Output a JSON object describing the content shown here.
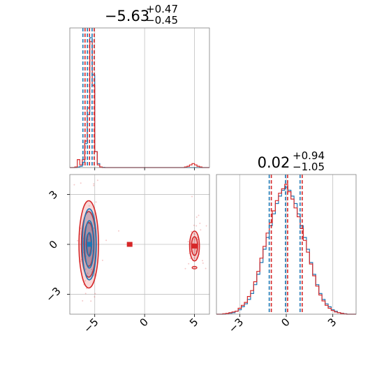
{
  "colors": {
    "series_a": "#1f77b4",
    "series_b": "#d62728"
  },
  "chart_data": [
    {
      "type": "histogram",
      "panel": "marginal-param-1",
      "title": {
        "main": "−5.63",
        "sup": "+0.47",
        "sub": "−0.45"
      },
      "xlim": [
        -7.5,
        6.5
      ],
      "xticks": [
        -5,
        0,
        5
      ],
      "quantile_lines": [
        -6.08,
        -5.63,
        -5.16
      ],
      "series": [
        {
          "color_key": "series_a",
          "bins_start": -7.5,
          "bin_width": 0.25,
          "counts": [
            0,
            0,
            0,
            0.4,
            1,
            4,
            18,
            40,
            98,
            70,
            12,
            3,
            0.5,
            0.2,
            0,
            0,
            0,
            0,
            0,
            0,
            0,
            0,
            0,
            0,
            0,
            0,
            0,
            0,
            0,
            0,
            0,
            0,
            0,
            0,
            0,
            0,
            0,
            0,
            0,
            0,
            0,
            0,
            0,
            0,
            0,
            0,
            0,
            0,
            0,
            0,
            0,
            0,
            0,
            0,
            0,
            0
          ]
        },
        {
          "color_key": "series_b",
          "bins_start": -7.5,
          "bin_width": 0.25,
          "counts": [
            0,
            0,
            0.5,
            6,
            2,
            6,
            20,
            45,
            95,
            62,
            12,
            2,
            0.5,
            0,
            0,
            0,
            0,
            0,
            0,
            0,
            0,
            0,
            0,
            0,
            0,
            0,
            0,
            0,
            0,
            0,
            0,
            0,
            0,
            0,
            0,
            0,
            0,
            0,
            0,
            0,
            0,
            0,
            0,
            0,
            0,
            0,
            0.5,
            1,
            2,
            3,
            2,
            1,
            0.5,
            0,
            0,
            0
          ]
        }
      ]
    },
    {
      "type": "histogram",
      "panel": "marginal-param-2",
      "title": {
        "main": "0.02",
        "sup": "+0.94",
        "sub": "−1.05"
      },
      "xlim": [
        -4.5,
        4.5
      ],
      "xticks": [
        -3,
        0,
        3
      ],
      "quantile_lines": [
        -1.03,
        0.02,
        0.96
      ],
      "series": [
        {
          "color_key": "series_a",
          "bins_start": -4.5,
          "bin_width": 0.2,
          "counts": [
            0,
            0,
            0,
            0.3,
            0.6,
            1,
            2,
            3,
            5,
            7,
            10,
            14,
            20,
            27,
            35,
            44,
            52,
            60,
            68,
            75,
            80,
            84,
            86,
            84,
            80,
            75,
            68,
            60,
            52,
            44,
            35,
            27,
            20,
            14,
            10,
            7,
            5,
            3,
            2,
            1,
            0.6,
            0.3,
            0,
            0,
            0
          ]
        },
        {
          "color_key": "series_b",
          "bins_start": -4.5,
          "bin_width": 0.2,
          "counts": [
            0,
            0,
            0.3,
            0.5,
            1,
            1.5,
            2,
            4,
            6,
            8,
            12,
            16,
            22,
            29,
            38,
            46,
            55,
            62,
            70,
            77,
            82,
            85,
            88,
            83,
            78,
            72,
            66,
            58,
            50,
            42,
            34,
            26,
            19,
            13,
            9,
            6,
            4,
            2.5,
            1.5,
            1,
            0.5,
            0.2,
            0,
            0,
            0
          ]
        }
      ]
    },
    {
      "type": "contour",
      "panel": "joint-param-1-param-2",
      "xlim": [
        -7.5,
        6.5
      ],
      "ylim": [
        -4.2,
        4.2
      ],
      "xticks": [
        -5,
        0,
        5
      ],
      "yticks": [
        -3,
        0,
        3
      ],
      "series": [
        {
          "color_key": "series_b",
          "blobs": [
            {
              "cx": -5.6,
              "cy": 0.0,
              "sx": 0.35,
              "sy": 1.05,
              "levels": [
                0.5,
                1.0,
                1.5,
                2.0
              ]
            },
            {
              "cx": 5.0,
              "cy": -0.1,
              "sx": 0.22,
              "sy": 0.45,
              "levels": [
                1.0,
                1.6
              ]
            }
          ],
          "island": {
            "x": 5.0,
            "y": -1.4
          },
          "markers": [
            {
              "x": -5.6,
              "y": 0.0
            },
            {
              "x": -1.5,
              "y": 0.0
            },
            {
              "x": 5.0,
              "y": -0.1
            }
          ]
        },
        {
          "color_key": "series_a",
          "blobs": [
            {
              "cx": -5.55,
              "cy": 0.0,
              "sx": 0.28,
              "sy": 0.95,
              "levels": [
                0.6,
                1.2,
                1.8
              ]
            }
          ],
          "markers": [
            {
              "x": -5.55,
              "y": 0.0
            }
          ]
        }
      ]
    }
  ]
}
